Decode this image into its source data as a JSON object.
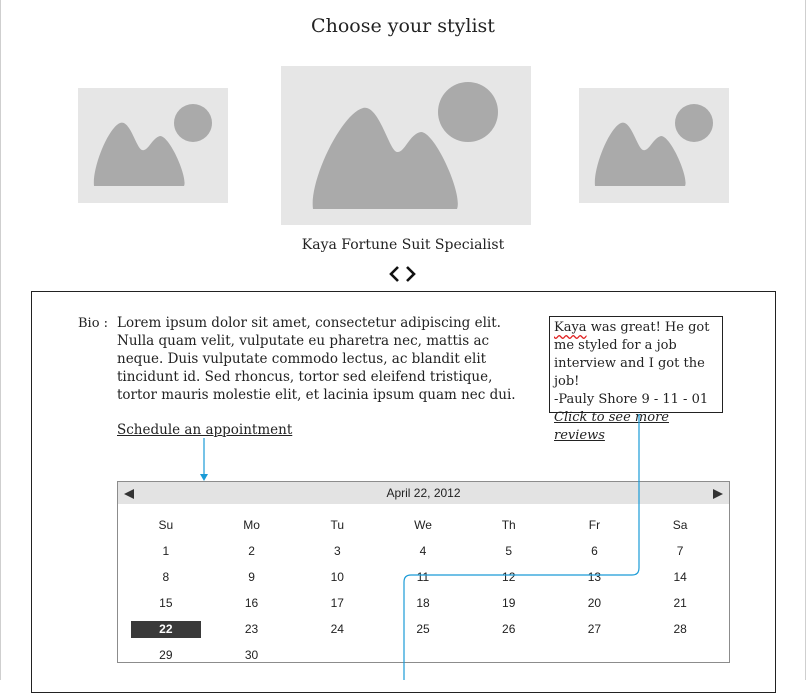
{
  "page": {
    "title": "Choose your stylist",
    "stylist_caption": "Kaya Fortune Suit Specialist"
  },
  "carousel": {
    "prev_icon": "chevron-left-icon",
    "next_icon": "chevron-right-icon"
  },
  "bio": {
    "label": "Bio :",
    "text": "Lorem ipsum dolor sit amet, consectetur adipiscing elit. Nulla quam velit, vulputate eu pharetra nec, mattis ac neque. Duis vulputate commodo lectus, ac blandit elit tincidunt id. Sed rhoncus, tortor sed eleifend tristique, tortor mauris molestie elit, et lacinia ipsum quam nec dui.",
    "schedule_link": "Schedule an appointment"
  },
  "review": {
    "name": "Kaya",
    "rest_line1": " was great! He got me styled for a job interview and I got the job!",
    "author": "-Pauly Shore 9 - 11 - 01",
    "more_link": "Click to see more reviews"
  },
  "calendar": {
    "title": "April 22, 2012",
    "weekdays": [
      "Su",
      "Mo",
      "Tu",
      "We",
      "Th",
      "Fr",
      "Sa"
    ],
    "weeks": [
      [
        "1",
        "2",
        "3",
        "4",
        "5",
        "6",
        "7"
      ],
      [
        "8",
        "9",
        "10",
        "11",
        "12",
        "13",
        "14"
      ],
      [
        "15",
        "16",
        "17",
        "18",
        "19",
        "20",
        "21"
      ],
      [
        "22",
        "23",
        "24",
        "25",
        "26",
        "27",
        "28"
      ],
      [
        "29",
        "30",
        "",
        "",
        "",
        "",
        ""
      ]
    ],
    "selected": "22"
  },
  "colors": {
    "connector": "#1a9bd7",
    "placeholder_bg": "#e6e6e6",
    "placeholder_shape": "#aaaaaa"
  }
}
